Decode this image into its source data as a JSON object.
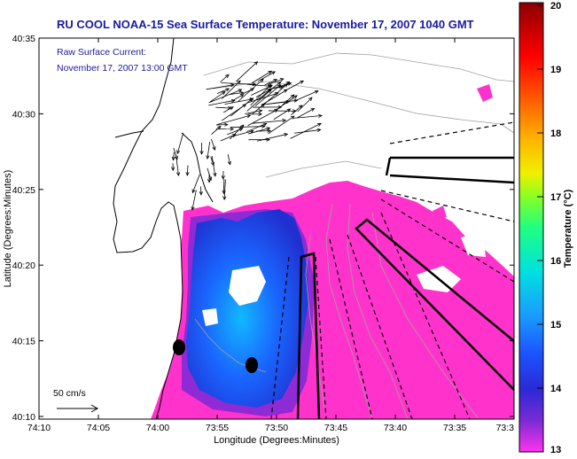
{
  "title": "RU COOL  NOAA-15  Sea Surface Temperature:  November 17, 2007 1040 GMT",
  "current_label_line1": "Raw Surface Current:",
  "current_label_line2": "November 17, 2007 13:00 GMT",
  "scale_label": "50 cm/s",
  "x_axis_label": "Longitude (Degrees:Minutes)",
  "y_axis_label": "Latitude (Degrees:Minutes)",
  "colorbar_label": "Temperature (°C)",
  "x_ticks": [
    "74:10",
    "74:05",
    "74:00",
    "73:55",
    "73:50",
    "73:45",
    "73:40",
    "73:35",
    "73:3"
  ],
  "y_ticks": [
    "40:35",
    "40:30",
    "40:25",
    "40:20",
    "40:15",
    "40:10"
  ],
  "colorbar_ticks": [
    "20",
    "19",
    "18",
    "17",
    "16",
    "15",
    "14",
    "13"
  ],
  "colors": {
    "title": "#1a1aa0",
    "warm_sst": "#ff33cc",
    "cool_sst": "#1a4cff",
    "land": "#ffffff"
  }
}
